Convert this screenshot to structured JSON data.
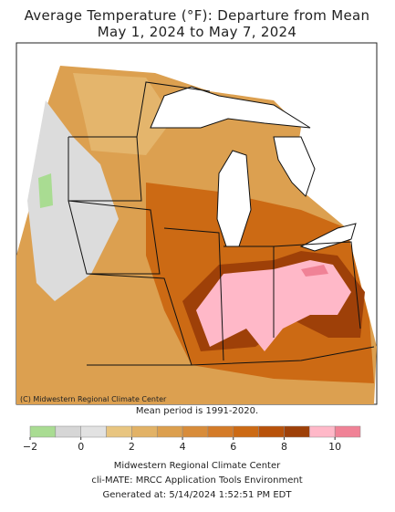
{
  "title": "Average Temperature (°F): Departure from Mean",
  "subtitle": "May 1, 2024 to May 7, 2024",
  "map": {
    "credit": "(C) Midwestern Regional Climate Center"
  },
  "note": "Mean period is 1991-2020.",
  "legend": {
    "bins": [
      -2,
      -1,
      0,
      1,
      2,
      3,
      4,
      5,
      6,
      7,
      8,
      9,
      10,
      11
    ],
    "colors": [
      "#a9dc92",
      "#d6d6d6",
      "#e2e2e2",
      "#e8c580",
      "#e2b266",
      "#dc9f4e",
      "#d88c3a",
      "#d47b28",
      "#cc6a14",
      "#b8520a",
      "#9e4008",
      "#ffb8c8",
      "#f08296"
    ],
    "ticks": [
      {
        "value": -2,
        "label": "−2"
      },
      0,
      2,
      4,
      6,
      8,
      10
    ]
  },
  "footer": [
    "Midwestern Regional Climate Center",
    "cli-MATE: MRCC Application Tools Environment",
    "Generated at: 5/14/2024 1:52:51 PM EDT"
  ]
}
